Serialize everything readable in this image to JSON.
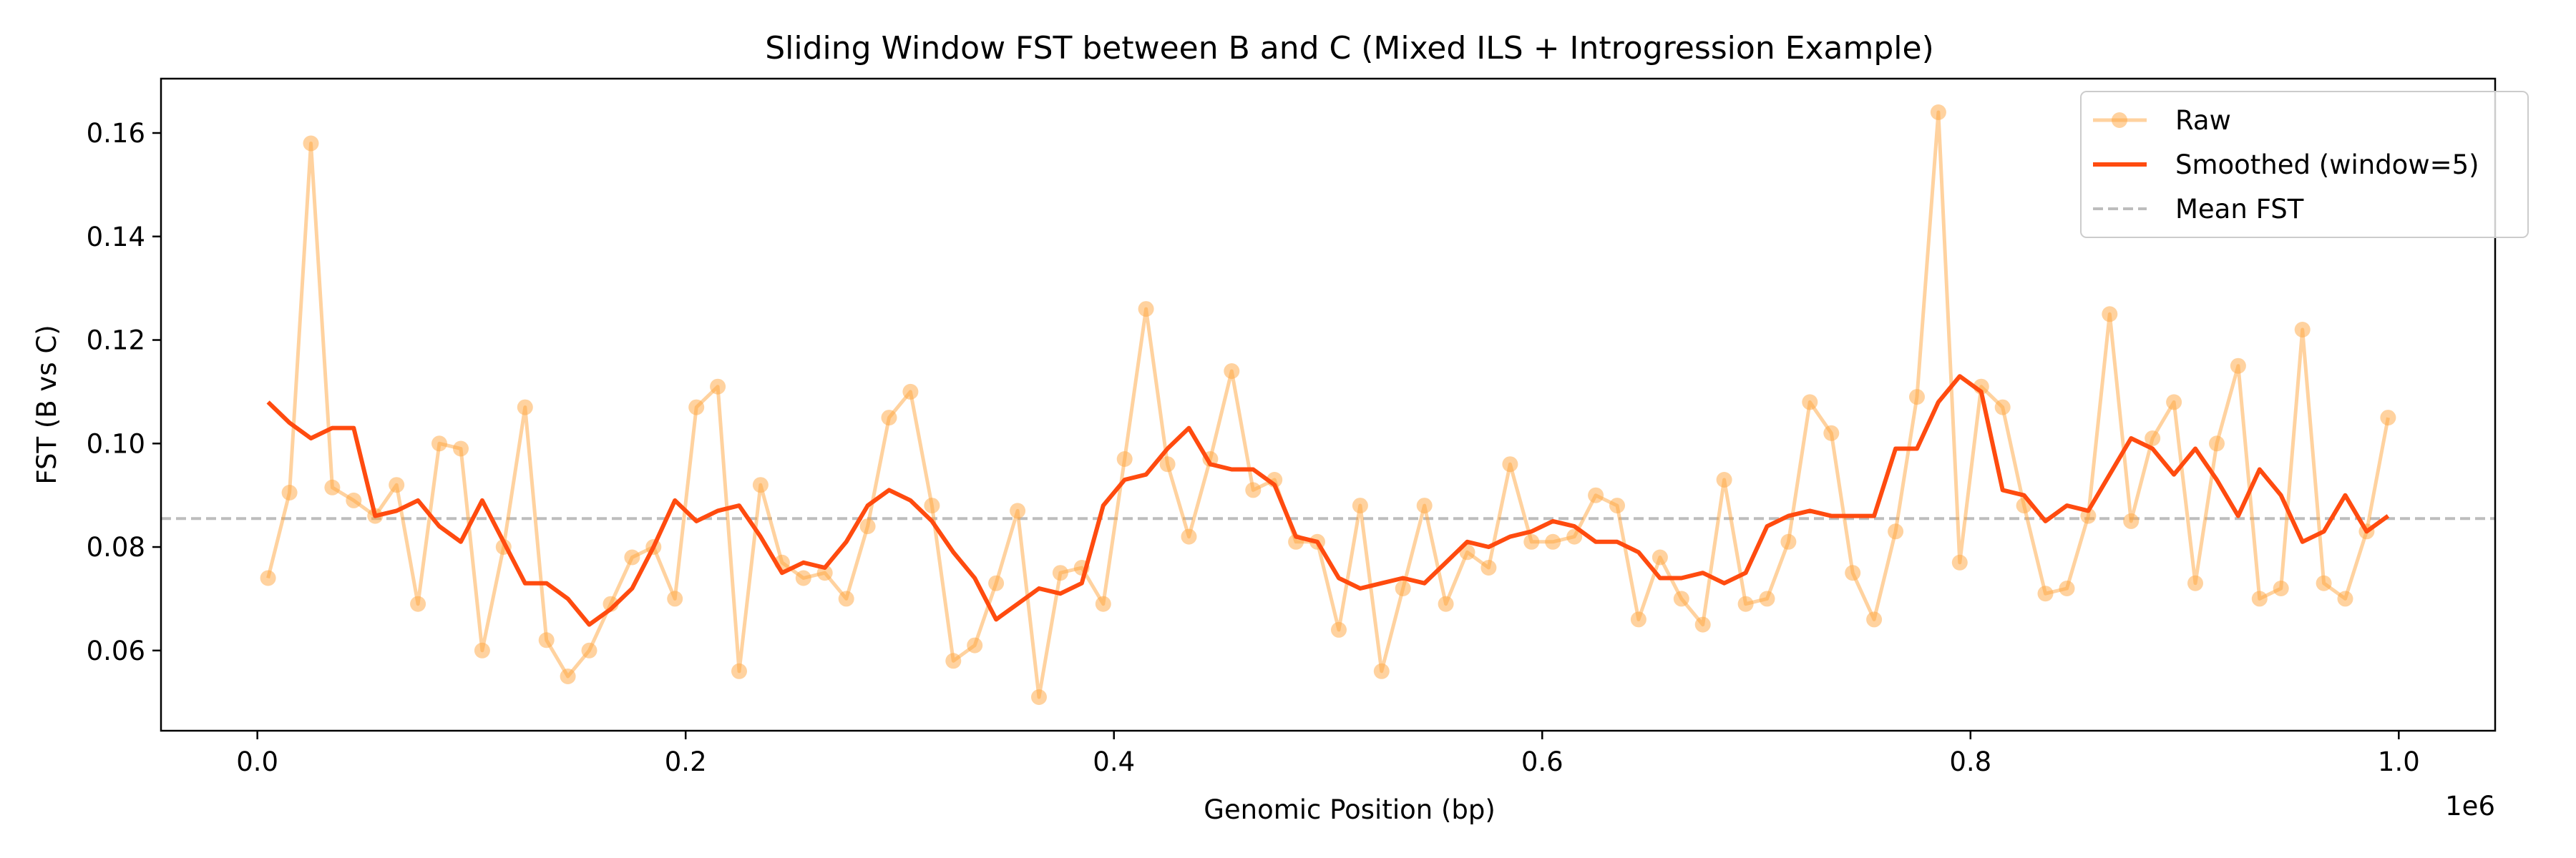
{
  "chart_data": {
    "type": "line",
    "title": "Sliding Window FST between B and C (Mixed ILS + Introgression Example)",
    "xlabel": "Genomic Position (bp)",
    "ylabel": "FST (B vs C)",
    "x_offset_label": "1e6",
    "xlim": [
      -0.045,
      1.045
    ],
    "ylim": [
      0.0445,
      0.1705
    ],
    "x_ticks": [
      0.0,
      0.2,
      0.4,
      0.6,
      0.8,
      1.0
    ],
    "x_tick_labels": [
      "0.0",
      "0.2",
      "0.4",
      "0.6",
      "0.8",
      "1.0"
    ],
    "y_ticks": [
      0.06,
      0.08,
      0.1,
      0.12,
      0.14,
      0.16
    ],
    "y_tick_labels": [
      "0.06",
      "0.08",
      "0.10",
      "0.12",
      "0.14",
      "0.16"
    ],
    "grid": false,
    "legend_position": "top-right",
    "x": [
      0.005,
      0.015,
      0.025,
      0.035,
      0.045,
      0.055,
      0.065,
      0.075,
      0.085,
      0.095,
      0.105,
      0.115,
      0.125,
      0.135,
      0.145,
      0.155,
      0.165,
      0.175,
      0.185,
      0.195,
      0.205,
      0.215,
      0.225,
      0.235,
      0.245,
      0.255,
      0.265,
      0.275,
      0.285,
      0.295,
      0.305,
      0.315,
      0.325,
      0.335,
      0.345,
      0.355,
      0.365,
      0.375,
      0.385,
      0.395,
      0.405,
      0.415,
      0.425,
      0.435,
      0.445,
      0.455,
      0.465,
      0.475,
      0.485,
      0.495,
      0.505,
      0.515,
      0.525,
      0.535,
      0.545,
      0.555,
      0.565,
      0.575,
      0.585,
      0.595,
      0.605,
      0.615,
      0.625,
      0.635,
      0.645,
      0.655,
      0.665,
      0.675,
      0.685,
      0.695,
      0.705,
      0.715,
      0.725,
      0.735,
      0.745,
      0.755,
      0.765,
      0.775,
      0.785,
      0.795,
      0.805,
      0.815,
      0.825,
      0.835,
      0.845,
      0.855,
      0.865,
      0.875,
      0.885,
      0.895,
      0.905,
      0.915,
      0.925,
      0.935,
      0.945,
      0.955,
      0.965,
      0.975,
      0.985,
      0.995
    ],
    "series": [
      {
        "name": "Raw",
        "style": "line-marker",
        "color": "#ffa640",
        "values": [
          0.074,
          0.0905,
          0.158,
          0.0915,
          0.089,
          0.086,
          0.092,
          0.069,
          0.1,
          0.099,
          0.06,
          0.08,
          0.107,
          0.062,
          0.055,
          0.06,
          0.069,
          0.078,
          0.08,
          0.07,
          0.107,
          0.111,
          0.056,
          0.092,
          0.077,
          0.074,
          0.075,
          0.07,
          0.084,
          0.105,
          0.11,
          0.088,
          0.058,
          0.061,
          0.073,
          0.087,
          0.051,
          0.075,
          0.076,
          0.069,
          0.097,
          0.126,
          0.096,
          0.082,
          0.097,
          0.114,
          0.091,
          0.093,
          0.081,
          0.081,
          0.064,
          0.088,
          0.056,
          0.072,
          0.088,
          0.069,
          0.079,
          0.076,
          0.096,
          0.081,
          0.081,
          0.082,
          0.09,
          0.088,
          0.066,
          0.078,
          0.07,
          0.065,
          0.093,
          0.069,
          0.07,
          0.081,
          0.108,
          0.102,
          0.075,
          0.066,
          0.083,
          0.109,
          0.164,
          0.077,
          0.111,
          0.107,
          0.088,
          0.071,
          0.072,
          0.086,
          0.125,
          0.085,
          0.101,
          0.108,
          0.073,
          0.1,
          0.115,
          0.07,
          0.072,
          0.122,
          0.073,
          0.07,
          0.083,
          0.105
        ]
      },
      {
        "name": "Smoothed (window=5)",
        "style": "line",
        "color": "#ff4b0f",
        "values": [
          0.108,
          0.104,
          0.101,
          0.103,
          0.103,
          0.086,
          0.087,
          0.089,
          0.084,
          0.081,
          0.089,
          0.081,
          0.073,
          0.073,
          0.07,
          0.065,
          0.068,
          0.072,
          0.08,
          0.089,
          0.085,
          0.087,
          0.088,
          0.082,
          0.075,
          0.077,
          0.076,
          0.081,
          0.088,
          0.091,
          0.089,
          0.085,
          0.079,
          0.074,
          0.066,
          0.069,
          0.072,
          0.071,
          0.073,
          0.088,
          0.093,
          0.094,
          0.099,
          0.103,
          0.096,
          0.095,
          0.095,
          0.092,
          0.082,
          0.081,
          0.074,
          0.072,
          0.073,
          0.074,
          0.073,
          0.077,
          0.081,
          0.08,
          0.082,
          0.083,
          0.085,
          0.084,
          0.081,
          0.081,
          0.079,
          0.074,
          0.074,
          0.075,
          0.073,
          0.075,
          0.084,
          0.086,
          0.087,
          0.086,
          0.086,
          0.086,
          0.099,
          0.099,
          0.108,
          0.113,
          0.11,
          0.091,
          0.09,
          0.085,
          0.088,
          0.087,
          0.094,
          0.101,
          0.099,
          0.094,
          0.099,
          0.093,
          0.086,
          0.095,
          0.09,
          0.081,
          0.083,
          0.09,
          0.083,
          0.086
        ]
      },
      {
        "name": "Mean FST",
        "style": "hline-dashed",
        "color": "#bdbdbd",
        "value": 0.0855
      }
    ]
  }
}
